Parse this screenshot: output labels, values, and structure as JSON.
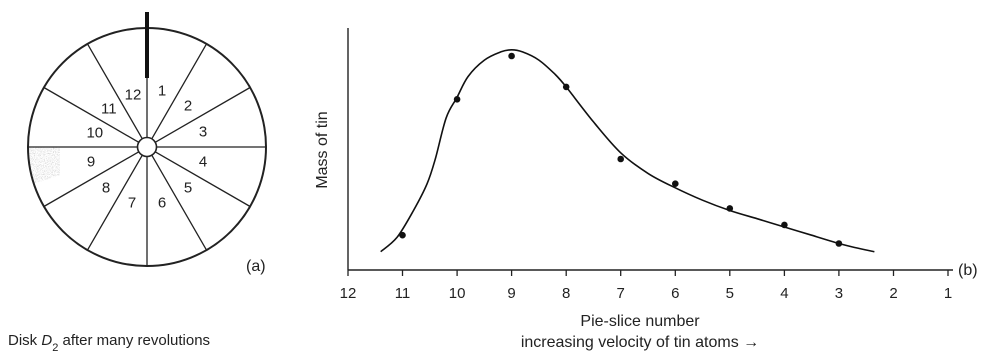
{
  "disk_panel": {
    "segment_numbers": [
      "1",
      "2",
      "3",
      "4",
      "5",
      "6",
      "7",
      "8",
      "9",
      "10",
      "11",
      "12"
    ],
    "panel_label": "(a)",
    "caption": {
      "text_before": "Disk ",
      "symbol": "D",
      "subscript": "2",
      "text_after": " after many revolutions"
    }
  },
  "chart_panel": {
    "panel_label": "(b)"
  },
  "chart_data": {
    "type": "scatter",
    "title": "",
    "xlabel": "Pie-slice number",
    "xlabel_secondary": "increasing velocity of tin atoms →",
    "ylabel": "Mass of tin",
    "x_ticks": [
      12,
      11,
      10,
      9,
      8,
      7,
      6,
      5,
      4,
      3,
      2,
      1
    ],
    "xlim": [
      12,
      1
    ],
    "x_reversed": true,
    "ylim": [
      0,
      100
    ],
    "y_ticks_shown": false,
    "grid": false,
    "series": [
      {
        "kind": "points",
        "x": [
          11,
          10,
          9,
          8,
          7,
          6,
          5,
          4,
          3
        ],
        "y": [
          13,
          79,
          100,
          85,
          50,
          38,
          26,
          18,
          9
        ]
      },
      {
        "kind": "smooth-curve",
        "x": [
          11.4,
          11.1,
          10.8,
          10.55,
          10.4,
          10.2,
          10.0,
          9.8,
          9.5,
          9.2,
          9.0,
          8.8,
          8.5,
          8.2,
          8.0,
          7.5,
          7.0,
          6.5,
          6.0,
          5.5,
          5.0,
          4.5,
          4.0,
          3.5,
          3.0,
          2.7,
          2.35
        ],
        "y": [
          5,
          12,
          25,
          38,
          50,
          70,
          80,
          90,
          98,
          102,
          103,
          102,
          98,
          91,
          85,
          68,
          53,
          43,
          36,
          30,
          25,
          21,
          17,
          13,
          9,
          7,
          5
        ]
      }
    ]
  }
}
